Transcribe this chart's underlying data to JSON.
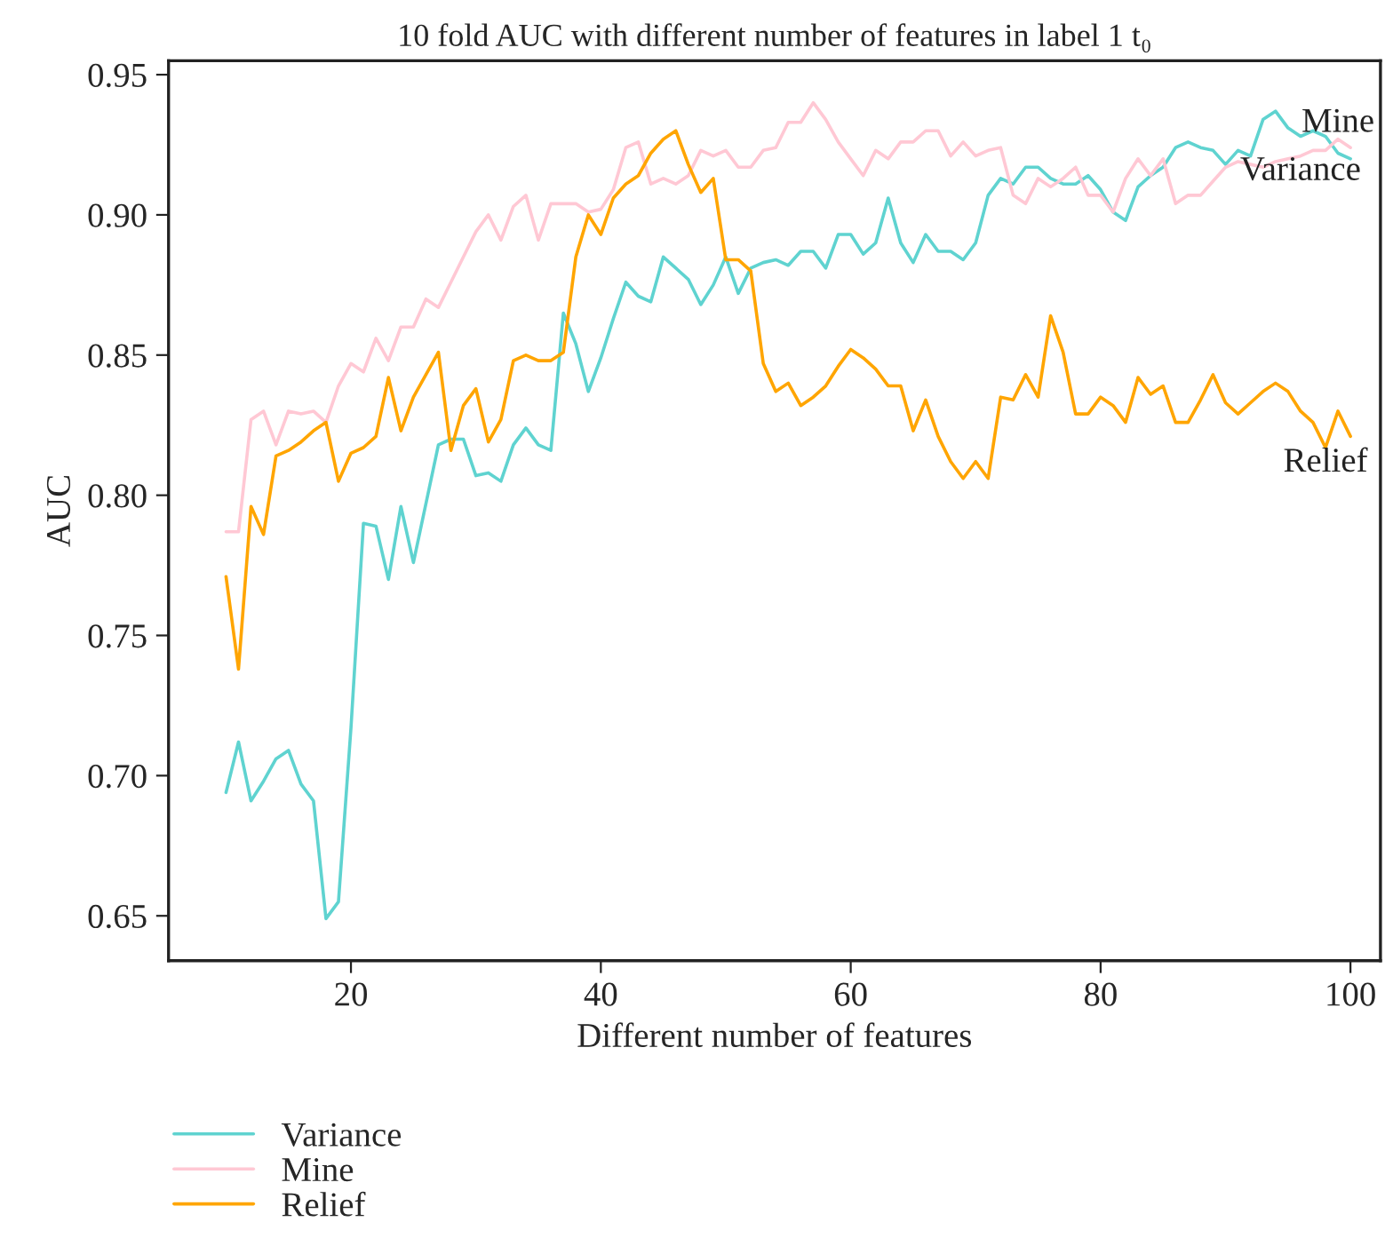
{
  "chart_data": {
    "type": "line",
    "title": "10 fold AUC with different number of features in label 1 t₀",
    "xlabel": "Different number of features",
    "ylabel": "AUC",
    "x": [
      10,
      11,
      12,
      13,
      14,
      15,
      16,
      17,
      18,
      19,
      20,
      21,
      22,
      23,
      24,
      25,
      26,
      27,
      28,
      29,
      30,
      31,
      32,
      33,
      34,
      35,
      36,
      37,
      38,
      39,
      40,
      41,
      42,
      43,
      44,
      45,
      46,
      47,
      48,
      49,
      50,
      51,
      52,
      53,
      54,
      55,
      56,
      57,
      58,
      59,
      60,
      61,
      62,
      63,
      64,
      65,
      66,
      67,
      68,
      69,
      70,
      71,
      72,
      73,
      74,
      75,
      76,
      77,
      78,
      79,
      80,
      81,
      82,
      83,
      84,
      85,
      86,
      87,
      88,
      89,
      90,
      91,
      92,
      93,
      94,
      95,
      96,
      97,
      98,
      99,
      100
    ],
    "series": [
      {
        "name": "Variance",
        "color": "#5fd3d0",
        "values": [
          0.694,
          0.712,
          0.691,
          0.698,
          0.706,
          0.709,
          0.697,
          0.691,
          0.649,
          0.655,
          0.717,
          0.79,
          0.789,
          0.77,
          0.796,
          0.776,
          0.797,
          0.818,
          0.82,
          0.82,
          0.807,
          0.808,
          0.805,
          0.818,
          0.824,
          0.818,
          0.816,
          0.865,
          0.854,
          0.837,
          0.849,
          0.863,
          0.876,
          0.871,
          0.869,
          0.885,
          0.881,
          0.877,
          0.868,
          0.875,
          0.885,
          0.872,
          0.881,
          0.883,
          0.884,
          0.882,
          0.887,
          0.887,
          0.881,
          0.893,
          0.893,
          0.886,
          0.89,
          0.906,
          0.89,
          0.883,
          0.893,
          0.887,
          0.887,
          0.884,
          0.89,
          0.907,
          0.913,
          0.911,
          0.917,
          0.917,
          0.913,
          0.911,
          0.911,
          0.914,
          0.909,
          0.901,
          0.898,
          0.91,
          0.914,
          0.917,
          0.924,
          0.926,
          0.924,
          0.923,
          0.918,
          0.923,
          0.921,
          0.934,
          0.937,
          0.931,
          0.928,
          0.93,
          0.928,
          0.922,
          0.92
        ]
      },
      {
        "name": "Mine",
        "color": "#ffc8d4",
        "values": [
          0.787,
          0.787,
          0.827,
          0.83,
          0.818,
          0.83,
          0.829,
          0.83,
          0.826,
          0.839,
          0.847,
          0.844,
          0.856,
          0.848,
          0.86,
          0.86,
          0.87,
          0.867,
          0.876,
          0.885,
          0.894,
          0.9,
          0.891,
          0.903,
          0.907,
          0.891,
          0.904,
          0.904,
          0.904,
          0.901,
          0.902,
          0.909,
          0.924,
          0.926,
          0.911,
          0.913,
          0.911,
          0.914,
          0.923,
          0.921,
          0.923,
          0.917,
          0.917,
          0.923,
          0.924,
          0.933,
          0.933,
          0.94,
          0.934,
          0.926,
          0.92,
          0.914,
          0.923,
          0.92,
          0.926,
          0.926,
          0.93,
          0.93,
          0.921,
          0.926,
          0.921,
          0.923,
          0.924,
          0.907,
          0.904,
          0.913,
          0.91,
          0.913,
          0.917,
          0.907,
          0.907,
          0.901,
          0.913,
          0.92,
          0.914,
          0.92,
          0.904,
          0.907,
          0.907,
          0.912,
          0.917,
          0.919,
          0.918,
          0.917,
          0.919,
          0.92,
          0.921,
          0.923,
          0.923,
          0.927,
          0.924
        ]
      },
      {
        "name": "Relief",
        "color": "#ffa500",
        "values": [
          0.771,
          0.738,
          0.796,
          0.786,
          0.814,
          0.816,
          0.819,
          0.823,
          0.826,
          0.805,
          0.815,
          0.817,
          0.821,
          0.842,
          0.823,
          0.835,
          0.843,
          0.851,
          0.816,
          0.832,
          0.838,
          0.819,
          0.827,
          0.848,
          0.85,
          0.848,
          0.848,
          0.851,
          0.885,
          0.9,
          0.893,
          0.906,
          0.911,
          0.914,
          0.922,
          0.927,
          0.93,
          0.918,
          0.908,
          0.913,
          0.884,
          0.884,
          0.88,
          0.847,
          0.837,
          0.84,
          0.832,
          0.835,
          0.839,
          0.846,
          0.852,
          0.849,
          0.845,
          0.839,
          0.839,
          0.823,
          0.834,
          0.821,
          0.812,
          0.806,
          0.812,
          0.806,
          0.835,
          0.834,
          0.843,
          0.835,
          0.864,
          0.851,
          0.829,
          0.829,
          0.835,
          0.832,
          0.826,
          0.842,
          0.836,
          0.839,
          0.826,
          0.826,
          0.834,
          0.843,
          0.833,
          0.829,
          0.833,
          0.837,
          0.84,
          0.837,
          0.83,
          0.826,
          0.817,
          0.83,
          0.821
        ]
      }
    ],
    "annotations": [
      {
        "text": "Mine",
        "x": 99,
        "y": 0.927
      },
      {
        "text": "Variance",
        "x": 96,
        "y": 0.921
      },
      {
        "text": "Relief",
        "x": 98,
        "y": 0.817
      }
    ],
    "xlim": [
      5.4,
      102.4
    ],
    "ylim": [
      0.634,
      0.955
    ],
    "xticks": [
      20,
      40,
      60,
      80,
      100
    ],
    "yticks": [
      {
        "value": 0.65,
        "label": "0.65"
      },
      {
        "value": 0.7,
        "label": "0.70"
      },
      {
        "value": 0.75,
        "label": "0.75"
      },
      {
        "value": 0.8,
        "label": "0.80"
      },
      {
        "value": 0.85,
        "label": "0.85"
      },
      {
        "value": 0.9,
        "label": "0.90"
      },
      {
        "value": 0.95,
        "label": "0.95"
      }
    ],
    "legend": "bottom left",
    "grid": false,
    "marker": "none",
    "line_style": "solid"
  }
}
